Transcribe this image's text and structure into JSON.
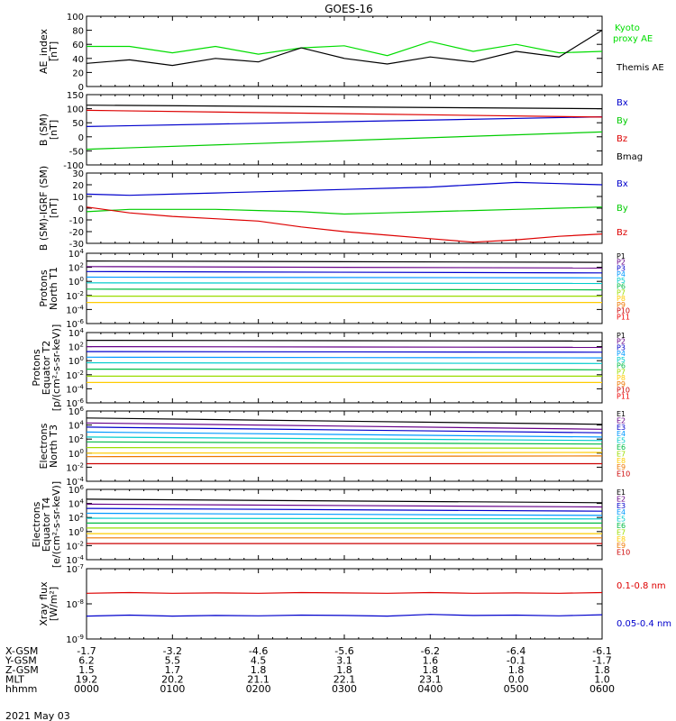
{
  "title": "GOES-16",
  "date_label": "2021 May 03",
  "footer_rows": [
    {
      "label": "X-GSM",
      "values": [
        "-1.7",
        "-3.2",
        "-4.6",
        "-5.6",
        "-6.2",
        "-6.4",
        "-6.1"
      ]
    },
    {
      "label": "Y-GSM",
      "values": [
        "6.2",
        "5.5",
        "4.5",
        "3.1",
        "1.6",
        "-0.1",
        "-1.7"
      ]
    },
    {
      "label": "Z-GSM",
      "values": [
        "1.5",
        "1.7",
        "1.8",
        "1.8",
        "1.8",
        "1.8",
        "1.8"
      ]
    },
    {
      "label": "MLT",
      "values": [
        "19.2",
        "20.2",
        "21.1",
        "22.1",
        "23.1",
        "0.0",
        "1.0"
      ]
    },
    {
      "label": "hhmm",
      "values": [
        "0000",
        "0100",
        "0200",
        "0300",
        "0400",
        "0500",
        "0600"
      ]
    }
  ],
  "chart_data": [
    {
      "type": "line",
      "ylabel": [
        "AE_index",
        "[nT]"
      ],
      "ylim": [
        0,
        100
      ],
      "yticks": [
        "0",
        "20",
        "40",
        "60",
        "80",
        "100"
      ],
      "scale": "linear",
      "x": [
        0,
        0.5,
        1,
        1.5,
        2,
        2.5,
        3,
        3.5,
        4,
        4.5,
        5,
        5.5,
        6
      ],
      "series": [
        {
          "name": "Kyoto proxy AE",
          "color": "#00dd00",
          "values": [
            57,
            57,
            48,
            57,
            46,
            55,
            58,
            44,
            64,
            50,
            60,
            48,
            50
          ]
        },
        {
          "name": "Themis AE",
          "color": "#000000",
          "values": [
            33,
            38,
            30,
            40,
            35,
            55,
            40,
            32,
            42,
            35,
            50,
            42,
            80
          ]
        }
      ],
      "legend": [
        {
          "text": "Kyoto",
          "color": "#00dd00"
        },
        {
          "text": "proxy AE",
          "color": "#00dd00"
        },
        {
          "text": "Themis AE",
          "color": "#000000"
        }
      ]
    },
    {
      "type": "line",
      "ylabel": [
        "B (SM)",
        "[nT]"
      ],
      "ylim": [
        -110,
        150
      ],
      "yticks": [
        "-100",
        "-50",
        "0",
        "50",
        "100",
        "150"
      ],
      "scale": "linear",
      "x": [
        0,
        6
      ],
      "series": [
        {
          "name": "Bx",
          "color": "#0000cc",
          "values": [
            32,
            68
          ]
        },
        {
          "name": "By",
          "color": "#00cc00",
          "values": [
            -52,
            12
          ]
        },
        {
          "name": "Bz",
          "color": "#dd0000",
          "values": [
            92,
            67
          ]
        },
        {
          "name": "Bmag",
          "color": "#000000",
          "values": [
            111,
            98
          ]
        }
      ],
      "legend": [
        {
          "text": "Bx",
          "color": "#0000cc"
        },
        {
          "text": "By",
          "color": "#00cc00"
        },
        {
          "text": "Bz",
          "color": "#dd0000"
        },
        {
          "text": "Bmag",
          "color": "#000000"
        }
      ]
    },
    {
      "type": "line",
      "ylabel": [
        "B (SM)-IGRF (SM)",
        "[nT]"
      ],
      "ylim": [
        -30,
        30
      ],
      "yticks": [
        "-30",
        "-20",
        "-10",
        "0",
        "10",
        "20",
        "30"
      ],
      "scale": "linear",
      "x": [
        0,
        0.5,
        1,
        1.5,
        2,
        2.5,
        3,
        3.5,
        4,
        4.5,
        5,
        5.5,
        6
      ],
      "series": [
        {
          "name": "Bx",
          "color": "#0000cc",
          "values": [
            12,
            11,
            12,
            13,
            14,
            15,
            16,
            17,
            18,
            20,
            22,
            21,
            20
          ]
        },
        {
          "name": "By",
          "color": "#00cc00",
          "values": [
            -3,
            -1,
            -1,
            -1,
            -2,
            -3,
            -5,
            -4,
            -3,
            -2,
            -1,
            0,
            1
          ]
        },
        {
          "name": "Bz",
          "color": "#dd0000",
          "values": [
            1,
            -4,
            -7,
            -9,
            -11,
            -16,
            -20,
            -23,
            -26,
            -29,
            -27,
            -24,
            -22
          ]
        }
      ],
      "legend": [
        {
          "text": "Bx",
          "color": "#0000cc"
        },
        {
          "text": "By",
          "color": "#00cc00"
        },
        {
          "text": "Bz",
          "color": "#dd0000"
        }
      ]
    },
    {
      "type": "line",
      "ylabel": [
        "Protons",
        "North T1"
      ],
      "ylim": [
        -6,
        4
      ],
      "yticks": [
        "10^-6",
        "10^-4",
        "10^-2",
        "10^0",
        "10^2",
        "10^4"
      ],
      "scale": "log10",
      "x": [
        0,
        6
      ],
      "series": [
        {
          "name": "P1",
          "color": "#000000",
          "values": [
            2.9,
            2.7
          ]
        },
        {
          "name": "P2",
          "color": "#660088",
          "values": [
            2.1,
            1.9
          ]
        },
        {
          "name": "P3",
          "color": "#0000cc",
          "values": [
            1.4,
            1.2
          ]
        },
        {
          "name": "P4",
          "color": "#0099ff",
          "values": [
            0.6,
            0.5
          ]
        },
        {
          "name": "P5",
          "color": "#00cccc",
          "values": [
            -0.2,
            -0.3
          ]
        },
        {
          "name": "P6",
          "color": "#00bb44",
          "values": [
            -1.1,
            -1.2
          ]
        },
        {
          "name": "P7",
          "color": "#99dd00",
          "values": [
            -2.1,
            -2.1
          ]
        },
        {
          "name": "P8",
          "color": "#ffcc00",
          "values": [
            -3.0,
            -3.0
          ]
        },
        {
          "name": "P9",
          "color": "#ee7700",
          "values": [
            null,
            null
          ]
        },
        {
          "name": "P10",
          "color": "#cc0000",
          "values": [
            null,
            null
          ]
        },
        {
          "name": "P11",
          "color": "#ee0000",
          "values": [
            null,
            null
          ]
        }
      ],
      "legend": [
        {
          "text": "P1",
          "color": "#000000"
        },
        {
          "text": "P2",
          "color": "#660088"
        },
        {
          "text": "P3",
          "color": "#0000cc"
        },
        {
          "text": "P4",
          "color": "#0099ff"
        },
        {
          "text": "P5",
          "color": "#00cccc"
        },
        {
          "text": "P6",
          "color": "#00bb44"
        },
        {
          "text": "P7",
          "color": "#99dd00"
        },
        {
          "text": "P8",
          "color": "#ffcc00"
        },
        {
          "text": "P9",
          "color": "#ee7700"
        },
        {
          "text": "P10",
          "color": "#cc0000"
        },
        {
          "text": "P11",
          "color": "#ee0000"
        }
      ]
    },
    {
      "type": "line",
      "ylabel": [
        "Protons",
        "Equator T2",
        "[p/(cm²-s-sr-keV)]"
      ],
      "ylim": [
        -6,
        4
      ],
      "yticks": [
        "10^-6",
        "10^-4",
        "10^-2",
        "10^0",
        "10^2",
        "10^4"
      ],
      "scale": "log10",
      "x": [
        0,
        6
      ],
      "series": [
        {
          "name": "P1",
          "color": "#000000",
          "values": [
            2.9,
            2.8
          ]
        },
        {
          "name": "P2",
          "color": "#660088",
          "values": [
            2.0,
            1.9
          ]
        },
        {
          "name": "P3",
          "color": "#0000cc",
          "values": [
            1.3,
            1.2
          ]
        },
        {
          "name": "P4",
          "color": "#0099ff",
          "values": [
            0.5,
            0.4
          ]
        },
        {
          "name": "P5",
          "color": "#00cccc",
          "values": [
            -0.3,
            -0.4
          ]
        },
        {
          "name": "P6",
          "color": "#00bb44",
          "values": [
            -1.2,
            -1.3
          ]
        },
        {
          "name": "P7",
          "color": "#99dd00",
          "values": [
            -2.2,
            -2.2
          ]
        },
        {
          "name": "P8",
          "color": "#ffcc00",
          "values": [
            -3.1,
            -3.1
          ]
        },
        {
          "name": "P9",
          "color": "#ee7700",
          "values": [
            null,
            null
          ]
        },
        {
          "name": "P10",
          "color": "#cc0000",
          "values": [
            null,
            null
          ]
        },
        {
          "name": "P11",
          "color": "#ee0000",
          "values": [
            null,
            null
          ]
        }
      ],
      "legend": [
        {
          "text": "P1",
          "color": "#000000"
        },
        {
          "text": "P2",
          "color": "#660088"
        },
        {
          "text": "P3",
          "color": "#0000cc"
        },
        {
          "text": "P4",
          "color": "#0099ff"
        },
        {
          "text": "P5",
          "color": "#00cccc"
        },
        {
          "text": "P6",
          "color": "#00bb44"
        },
        {
          "text": "P7",
          "color": "#99dd00"
        },
        {
          "text": "P8",
          "color": "#ffcc00"
        },
        {
          "text": "P9",
          "color": "#ee7700"
        },
        {
          "text": "P10",
          "color": "#cc0000"
        },
        {
          "text": "P11",
          "color": "#ee0000"
        }
      ]
    },
    {
      "type": "line",
      "ylabel": [
        "Electrons",
        "North T3"
      ],
      "ylim": [
        -4,
        6
      ],
      "yticks": [
        "10^-4",
        "10^-2",
        "10^0",
        "10^2",
        "10^4",
        "10^6"
      ],
      "scale": "log10",
      "x": [
        0,
        6
      ],
      "series": [
        {
          "name": "E1",
          "color": "#000000",
          "values": [
            5.0,
            4.1
          ]
        },
        {
          "name": "E2",
          "color": "#660088",
          "values": [
            4.3,
            3.4
          ]
        },
        {
          "name": "E3",
          "color": "#0000cc",
          "values": [
            3.7,
            2.9
          ]
        },
        {
          "name": "E4",
          "color": "#0099ff",
          "values": [
            3.0,
            2.3
          ]
        },
        {
          "name": "E5",
          "color": "#00cccc",
          "values": [
            2.3,
            1.8
          ]
        },
        {
          "name": "E6",
          "color": "#00bb44",
          "values": [
            1.6,
            1.3
          ]
        },
        {
          "name": "E7",
          "color": "#99dd00",
          "values": [
            0.8,
            0.7
          ]
        },
        {
          "name": "E8",
          "color": "#ffcc00",
          "values": [
            0.0,
            0.1
          ]
        },
        {
          "name": "E9",
          "color": "#ee7700",
          "values": [
            -0.5,
            -0.4
          ]
        },
        {
          "name": "E10",
          "color": "#cc0000",
          "values": [
            -1.5,
            -1.5
          ]
        }
      ],
      "legend": [
        {
          "text": "E1",
          "color": "#000000"
        },
        {
          "text": "E2",
          "color": "#660088"
        },
        {
          "text": "E3",
          "color": "#0000cc"
        },
        {
          "text": "E4",
          "color": "#0099ff"
        },
        {
          "text": "E5",
          "color": "#00cccc"
        },
        {
          "text": "E6",
          "color": "#00bb44"
        },
        {
          "text": "E7",
          "color": "#99dd00"
        },
        {
          "text": "E8",
          "color": "#ffcc00"
        },
        {
          "text": "E9",
          "color": "#ee7700"
        },
        {
          "text": "E10",
          "color": "#cc0000"
        }
      ]
    },
    {
      "type": "line",
      "ylabel": [
        "Electrons",
        "Equator T4",
        "[e/(cm²-s-sr-keV)]"
      ],
      "ylim": [
        -4,
        6
      ],
      "yticks": [
        "10^-4",
        "10^-2",
        "10^0",
        "10^2",
        "10^4",
        "10^6"
      ],
      "scale": "log10",
      "x": [
        0,
        6
      ],
      "series": [
        {
          "name": "E1",
          "color": "#000000",
          "values": [
            4.6,
            4.1
          ]
        },
        {
          "name": "E2",
          "color": "#660088",
          "values": [
            3.9,
            3.5
          ]
        },
        {
          "name": "E3",
          "color": "#0000cc",
          "values": [
            3.3,
            2.9
          ]
        },
        {
          "name": "E4",
          "color": "#0099ff",
          "values": [
            2.6,
            2.3
          ]
        },
        {
          "name": "E5",
          "color": "#00cccc",
          "values": [
            1.9,
            1.8
          ]
        },
        {
          "name": "E6",
          "color": "#00bb44",
          "values": [
            1.2,
            1.2
          ]
        },
        {
          "name": "E7",
          "color": "#99dd00",
          "values": [
            0.5,
            0.5
          ]
        },
        {
          "name": "E8",
          "color": "#ffcc00",
          "values": [
            -0.3,
            -0.3
          ]
        },
        {
          "name": "E9",
          "color": "#ee7700",
          "values": [
            -0.9,
            -0.9
          ]
        },
        {
          "name": "E10",
          "color": "#cc0000",
          "values": [
            -1.7,
            -1.7
          ]
        }
      ],
      "legend": [
        {
          "text": "E1",
          "color": "#000000"
        },
        {
          "text": "E2",
          "color": "#660088"
        },
        {
          "text": "E3",
          "color": "#0000cc"
        },
        {
          "text": "E4",
          "color": "#0099ff"
        },
        {
          "text": "E5",
          "color": "#00cccc"
        },
        {
          "text": "E6",
          "color": "#00bb44"
        },
        {
          "text": "E7",
          "color": "#99dd00"
        },
        {
          "text": "E8",
          "color": "#ffcc00"
        },
        {
          "text": "E9",
          "color": "#ee7700"
        },
        {
          "text": "E10",
          "color": "#cc0000"
        }
      ]
    },
    {
      "type": "line",
      "ylabel": [
        "Xray flux",
        "[W/m²]"
      ],
      "ylim": [
        -9,
        -7
      ],
      "yticks": [
        "10^-9",
        "10^-8",
        "10^-7"
      ],
      "scale": "log10",
      "x": [
        0,
        0.5,
        1,
        1.5,
        2,
        2.5,
        3,
        3.5,
        4,
        4.5,
        5,
        5.5,
        6
      ],
      "series": [
        {
          "name": "0.1-0.8 nm",
          "color": "#dd0000",
          "values": [
            -7.7,
            -7.68,
            -7.7,
            -7.69,
            -7.7,
            -7.68,
            -7.69,
            -7.7,
            -7.68,
            -7.7,
            -7.69,
            -7.7,
            -7.68
          ]
        },
        {
          "name": "0.05-0.4 nm",
          "color": "#0000cc",
          "values": [
            -8.35,
            -8.32,
            -8.35,
            -8.33,
            -8.34,
            -8.32,
            -8.33,
            -8.35,
            -8.3,
            -8.33,
            -8.32,
            -8.34,
            -8.31
          ]
        }
      ],
      "legend": [
        {
          "text": "0.1-0.8 nm",
          "color": "#dd0000"
        },
        {
          "text": "0.05-0.4 nm",
          "color": "#0000cc"
        }
      ]
    }
  ]
}
